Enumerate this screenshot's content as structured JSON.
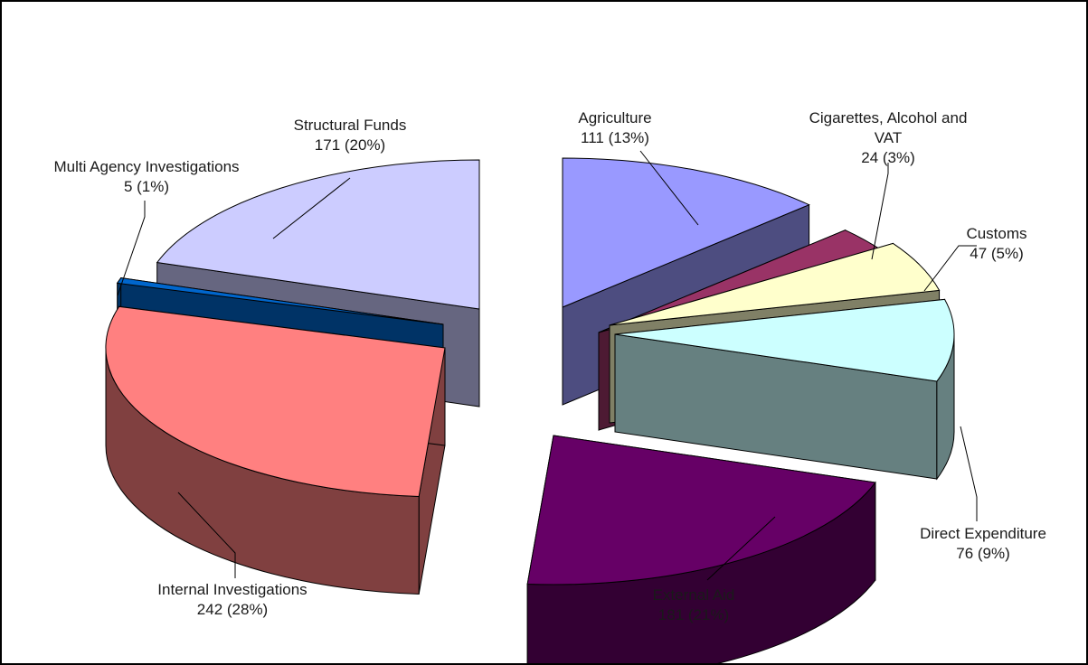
{
  "chart_data": {
    "type": "pie",
    "style": "3d-exploded",
    "slices": [
      {
        "name": "Agriculture",
        "value": 111,
        "percent": "13%",
        "value_text": "111 (13%)",
        "top": "#9999ff",
        "side": "#4d4d80",
        "wall": "#4d4d80"
      },
      {
        "name": "Cigarettes, Alcohol and VAT",
        "name_line2": "VAT",
        "name_line1": "Cigarettes, Alcohol and",
        "value": 24,
        "percent": "3%",
        "value_text": "24 (3%)",
        "top": "#993366",
        "side": "#4d1a33",
        "wall": "#4d1a33"
      },
      {
        "name": "Customs",
        "value": 47,
        "percent": "5%",
        "value_text": "47 (5%)",
        "top": "#ffffcc",
        "side": "#808066",
        "wall": "#808066"
      },
      {
        "name": "Direct Expenditure",
        "value": 76,
        "percent": "9%",
        "value_text": "76 (9%)",
        "top": "#ccffff",
        "side": "#668080",
        "wall": "#668080"
      },
      {
        "name": "External Aid",
        "value": 181,
        "percent": "21%",
        "value_text": "181 (21%)",
        "top": "#660066",
        "side": "#330033",
        "wall": "#330033"
      },
      {
        "name": "Internal Investigations",
        "value": 242,
        "percent": "28%",
        "value_text": "242 (28%)",
        "top": "#ff8080",
        "side": "#804040",
        "wall": "#804040"
      },
      {
        "name": "Multi Agency Investigations",
        "value": 5,
        "percent": "1%",
        "value_text": "5 (1%)",
        "top": "#0066cc",
        "side": "#003366",
        "wall": "#003366"
      },
      {
        "name": "Structural Funds",
        "value": 171,
        "percent": "20%",
        "value_text": "171 (20%)",
        "top": "#ccccff",
        "side": "#666680",
        "wall": "#666680"
      }
    ]
  }
}
